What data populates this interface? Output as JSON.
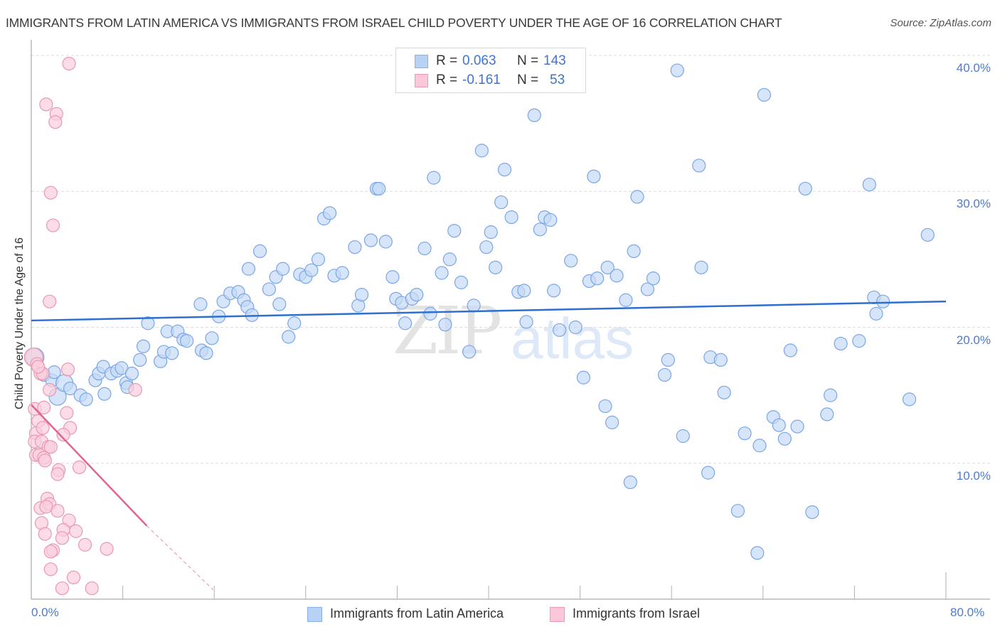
{
  "header": {
    "title": "IMMIGRANTS FROM LATIN AMERICA VS IMMIGRANTS FROM ISRAEL CHILD POVERTY UNDER THE AGE OF 16 CORRELATION CHART",
    "source": "Source: ZipAtlas.com"
  },
  "watermark": {
    "zip": "ZIP",
    "atlas": "atlas"
  },
  "legend": {
    "rows": [
      {
        "r_label": "R =",
        "r_value": "0.063",
        "n_label": "N =",
        "n_value": "143",
        "swatch": "#b8d2f5",
        "swatch_border": "#8ab0e6"
      },
      {
        "r_label": "R =",
        "r_value": "-0.161",
        "n_label": "N =",
        "n_value": "53",
        "swatch": "#fcc8d8",
        "swatch_border": "#ef9ab5"
      }
    ]
  },
  "bottom_legend": [
    {
      "label": "Immigrants from Latin America",
      "swatch": "#b8d2f5",
      "swatch_border": "#8ab0e6"
    },
    {
      "label": "Immigrants from Israel",
      "swatch": "#fcc8d8",
      "swatch_border": "#ef9ab5"
    }
  ],
  "chart_data": {
    "type": "scatter",
    "title": "IMMIGRANTS FROM LATIN AMERICA VS IMMIGRANTS FROM ISRAEL CHILD POVERTY UNDER THE AGE OF 16 CORRELATION CHART",
    "xlabel": "",
    "ylabel": "Child Poverty Under the Age of 16",
    "xlim": [
      0,
      80
    ],
    "ylim": [
      0,
      40
    ],
    "x_tick_labels": [
      "0.0%",
      "80.0%"
    ],
    "y_ticks": [
      10,
      20,
      30,
      40
    ],
    "y_tick_labels": [
      "10.0%",
      "20.0%",
      "30.0%",
      "40.0%"
    ],
    "grid": true,
    "legend_position": "top-center",
    "series": [
      {
        "name": "Immigrants from Latin America",
        "color": "#7aa6e6",
        "fill": "#c5daf6",
        "R": 0.063,
        "N": 143,
        "trend": {
          "x": [
            0,
            80
          ],
          "y": [
            20.5,
            21.9
          ]
        },
        "points": [
          [
            0.3,
            17.8
          ],
          [
            1.1,
            16.5
          ],
          [
            1.8,
            16.1
          ],
          [
            2.3,
            14.9
          ],
          [
            2.9,
            15.9
          ],
          [
            3.4,
            15.5
          ],
          [
            4.3,
            15.0
          ],
          [
            4.8,
            14.7
          ],
          [
            5.6,
            16.1
          ],
          [
            5.9,
            16.6
          ],
          [
            6.3,
            17.1
          ],
          [
            6.4,
            15.1
          ],
          [
            7.0,
            16.6
          ],
          [
            7.5,
            16.8
          ],
          [
            7.9,
            17.0
          ],
          [
            8.3,
            15.9
          ],
          [
            8.8,
            16.6
          ],
          [
            9.5,
            17.6
          ],
          [
            9.8,
            18.6
          ],
          [
            10.2,
            20.3
          ],
          [
            11.3,
            17.5
          ],
          [
            11.6,
            18.2
          ],
          [
            11.9,
            19.7
          ],
          [
            12.3,
            18.1
          ],
          [
            12.8,
            19.7
          ],
          [
            13.3,
            19.1
          ],
          [
            13.6,
            19.0
          ],
          [
            14.8,
            21.7
          ],
          [
            14.9,
            18.3
          ],
          [
            15.3,
            18.1
          ],
          [
            15.8,
            19.2
          ],
          [
            16.4,
            20.8
          ],
          [
            16.8,
            21.9
          ],
          [
            17.4,
            22.5
          ],
          [
            18.1,
            22.6
          ],
          [
            18.6,
            22.0
          ],
          [
            18.9,
            21.5
          ],
          [
            19.0,
            24.3
          ],
          [
            19.3,
            20.9
          ],
          [
            20.0,
            25.6
          ],
          [
            20.8,
            22.8
          ],
          [
            21.4,
            23.7
          ],
          [
            21.7,
            21.7
          ],
          [
            22.0,
            24.3
          ],
          [
            22.5,
            19.3
          ],
          [
            23.0,
            20.3
          ],
          [
            23.5,
            23.9
          ],
          [
            24.0,
            23.7
          ],
          [
            24.5,
            24.2
          ],
          [
            25.1,
            25.0
          ],
          [
            25.6,
            28.0
          ],
          [
            26.1,
            28.4
          ],
          [
            26.5,
            23.8
          ],
          [
            27.2,
            24.0
          ],
          [
            28.3,
            25.9
          ],
          [
            28.6,
            21.6
          ],
          [
            28.9,
            22.4
          ],
          [
            29.7,
            26.4
          ],
          [
            30.2,
            30.2
          ],
          [
            30.4,
            30.2
          ],
          [
            31.0,
            26.3
          ],
          [
            31.6,
            23.7
          ],
          [
            31.9,
            22.1
          ],
          [
            32.4,
            21.8
          ],
          [
            32.7,
            20.3
          ],
          [
            33.3,
            22.1
          ],
          [
            33.7,
            22.4
          ],
          [
            34.4,
            25.8
          ],
          [
            34.9,
            21.0
          ],
          [
            35.2,
            31.0
          ],
          [
            35.9,
            24.0
          ],
          [
            36.2,
            20.2
          ],
          [
            36.6,
            25.0
          ],
          [
            37.0,
            27.1
          ],
          [
            37.6,
            23.3
          ],
          [
            38.3,
            18.2
          ],
          [
            38.7,
            21.6
          ],
          [
            39.4,
            33.0
          ],
          [
            39.8,
            25.9
          ],
          [
            40.2,
            27.0
          ],
          [
            40.6,
            24.4
          ],
          [
            41.1,
            29.2
          ],
          [
            41.4,
            31.6
          ],
          [
            42.0,
            28.1
          ],
          [
            42.6,
            22.6
          ],
          [
            43.1,
            22.7
          ],
          [
            43.3,
            20.4
          ],
          [
            44.0,
            35.6
          ],
          [
            44.5,
            27.2
          ],
          [
            44.9,
            28.1
          ],
          [
            45.4,
            27.9
          ],
          [
            45.7,
            22.7
          ],
          [
            46.2,
            19.8
          ],
          [
            47.2,
            24.9
          ],
          [
            47.6,
            20.0
          ],
          [
            48.3,
            16.3
          ],
          [
            48.8,
            23.4
          ],
          [
            49.2,
            31.1
          ],
          [
            49.5,
            23.6
          ],
          [
            50.2,
            14.2
          ],
          [
            50.4,
            24.4
          ],
          [
            50.8,
            13.0
          ],
          [
            51.2,
            23.8
          ],
          [
            52.0,
            22.0
          ],
          [
            52.4,
            8.6
          ],
          [
            52.7,
            25.6
          ],
          [
            53.0,
            29.6
          ],
          [
            53.9,
            22.8
          ],
          [
            54.4,
            23.6
          ],
          [
            55.4,
            16.5
          ],
          [
            56.5,
            38.9
          ],
          [
            55.7,
            17.6
          ],
          [
            57.0,
            12.0
          ],
          [
            58.4,
            31.9
          ],
          [
            58.6,
            24.4
          ],
          [
            59.2,
            9.3
          ],
          [
            59.4,
            17.8
          ],
          [
            60.3,
            17.6
          ],
          [
            60.6,
            15.2
          ],
          [
            61.8,
            6.5
          ],
          [
            62.4,
            12.2
          ],
          [
            63.5,
            3.4
          ],
          [
            63.7,
            11.3
          ],
          [
            64.1,
            37.1
          ],
          [
            64.9,
            13.4
          ],
          [
            65.4,
            12.8
          ],
          [
            65.9,
            11.8
          ],
          [
            66.4,
            18.3
          ],
          [
            67.0,
            12.7
          ],
          [
            67.7,
            30.2
          ],
          [
            68.3,
            6.4
          ],
          [
            69.6,
            13.6
          ],
          [
            69.9,
            15.0
          ],
          [
            70.8,
            18.8
          ],
          [
            72.4,
            19.0
          ],
          [
            73.3,
            30.5
          ],
          [
            73.7,
            22.2
          ],
          [
            73.9,
            21.0
          ],
          [
            74.5,
            21.9
          ],
          [
            76.8,
            14.7
          ],
          [
            78.4,
            26.8
          ],
          [
            2.0,
            16.7
          ],
          [
            8.4,
            15.6
          ]
        ]
      },
      {
        "name": "Immigrants from Israel",
        "color": "#e898b2",
        "fill": "#fbcfdd",
        "R": -0.161,
        "N": 53,
        "trend": {
          "x": [
            0,
            10.1
          ],
          "y": [
            14.3,
            5.4
          ],
          "dashed_to": {
            "x": 15.9,
            "y": 0.7
          }
        },
        "points": [
          [
            3.3,
            39.4
          ],
          [
            1.3,
            36.4
          ],
          [
            2.2,
            35.7
          ],
          [
            2.1,
            35.1
          ],
          [
            1.7,
            29.9
          ],
          [
            1.9,
            27.5
          ],
          [
            1.6,
            21.9
          ],
          [
            0.2,
            17.8
          ],
          [
            0.5,
            17.3
          ],
          [
            0.8,
            16.6
          ],
          [
            1.0,
            16.6
          ],
          [
            3.2,
            16.9
          ],
          [
            1.6,
            15.4
          ],
          [
            9.1,
            15.4
          ],
          [
            0.3,
            14.0
          ],
          [
            1.1,
            14.1
          ],
          [
            0.6,
            13.1
          ],
          [
            3.1,
            13.7
          ],
          [
            0.4,
            12.2
          ],
          [
            1.0,
            12.6
          ],
          [
            3.4,
            12.6
          ],
          [
            2.8,
            12.1
          ],
          [
            0.3,
            11.6
          ],
          [
            0.9,
            11.6
          ],
          [
            1.5,
            11.2
          ],
          [
            1.7,
            11.2
          ],
          [
            0.4,
            10.6
          ],
          [
            0.7,
            10.6
          ],
          [
            1.1,
            10.4
          ],
          [
            1.2,
            10.2
          ],
          [
            4.2,
            9.7
          ],
          [
            2.4,
            9.5
          ],
          [
            2.3,
            9.2
          ],
          [
            1.4,
            7.4
          ],
          [
            0.8,
            6.7
          ],
          [
            1.6,
            7.0
          ],
          [
            1.3,
            6.8
          ],
          [
            2.3,
            6.5
          ],
          [
            0.9,
            5.6
          ],
          [
            3.3,
            5.8
          ],
          [
            1.2,
            4.8
          ],
          [
            2.8,
            5.1
          ],
          [
            3.9,
            5.0
          ],
          [
            2.7,
            4.5
          ],
          [
            4.7,
            4.0
          ],
          [
            6.6,
            3.7
          ],
          [
            1.9,
            3.6
          ],
          [
            1.7,
            3.5
          ],
          [
            1.7,
            2.2
          ],
          [
            3.7,
            1.6
          ],
          [
            2.7,
            0.8
          ],
          [
            5.3,
            0.8
          ],
          [
            0.6,
            17.1
          ]
        ]
      }
    ]
  }
}
